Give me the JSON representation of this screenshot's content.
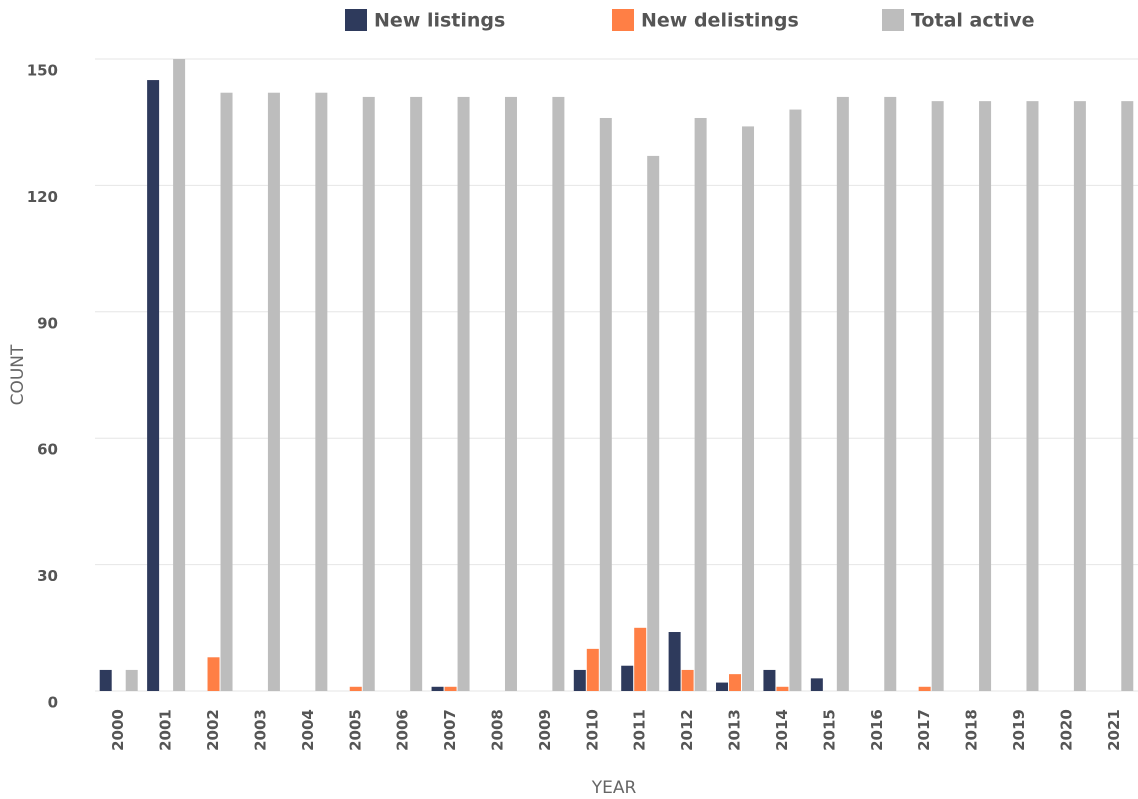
{
  "chart_data": {
    "type": "bar",
    "categories": [
      "2000",
      "2001",
      "2002",
      "2003",
      "2004",
      "2005",
      "2006",
      "2007",
      "2008",
      "2009",
      "2010",
      "2011",
      "2012",
      "2013",
      "2014",
      "2015",
      "2016",
      "2017",
      "2018",
      "2019",
      "2020",
      "2021"
    ],
    "series": [
      {
        "name": "New listings",
        "color": "#2e3a5c",
        "values": [
          5,
          145,
          0,
          0,
          0,
          0,
          0,
          1,
          0,
          0,
          5,
          6,
          14,
          2,
          5,
          3,
          0,
          0,
          0,
          0,
          0,
          0
        ]
      },
      {
        "name": "New delistings",
        "color": "#ff7f45",
        "values": [
          0,
          0,
          8,
          0,
          0,
          1,
          0,
          1,
          0,
          0,
          10,
          15,
          5,
          4,
          1,
          0,
          0,
          1,
          0,
          0,
          0,
          0
        ]
      },
      {
        "name": "Total active",
        "color": "#bdbdbd",
        "values": [
          5,
          150,
          142,
          142,
          142,
          141,
          141,
          141,
          141,
          141,
          136,
          127,
          136,
          134,
          138,
          141,
          141,
          140,
          140,
          140,
          140,
          140
        ]
      }
    ],
    "xlabel": "YEAR",
    "ylabel": "COUNT",
    "ylim": [
      0,
      150
    ],
    "yticks": [
      0,
      30,
      60,
      90,
      120,
      150
    ],
    "grid": true,
    "legend": "top"
  }
}
